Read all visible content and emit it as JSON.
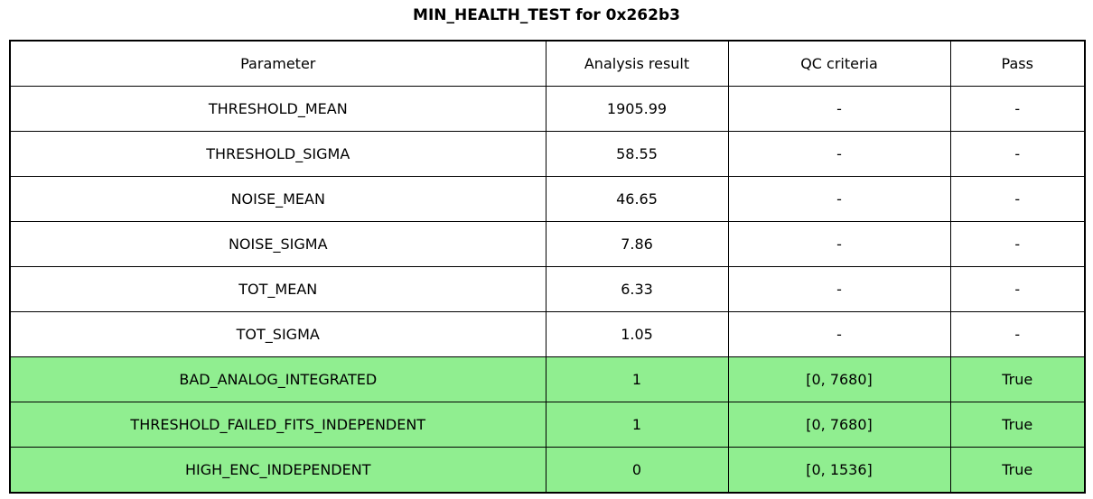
{
  "title": "MIN_HEALTH_TEST for 0x262b3",
  "chart_data": {
    "type": "table",
    "title": "MIN_HEALTH_TEST for 0x262b3",
    "columns": [
      "Parameter",
      "Analysis result",
      "QC criteria",
      "Pass"
    ],
    "rows": [
      {
        "parameter": "THRESHOLD_MEAN",
        "analysis_result": "1905.99",
        "qc_criteria": "-",
        "pass": "-",
        "highlight": false
      },
      {
        "parameter": "THRESHOLD_SIGMA",
        "analysis_result": "58.55",
        "qc_criteria": "-",
        "pass": "-",
        "highlight": false
      },
      {
        "parameter": "NOISE_MEAN",
        "analysis_result": "46.65",
        "qc_criteria": "-",
        "pass": "-",
        "highlight": false
      },
      {
        "parameter": "NOISE_SIGMA",
        "analysis_result": "7.86",
        "qc_criteria": "-",
        "pass": "-",
        "highlight": false
      },
      {
        "parameter": "TOT_MEAN",
        "analysis_result": "6.33",
        "qc_criteria": "-",
        "pass": "-",
        "highlight": false
      },
      {
        "parameter": "TOT_SIGMA",
        "analysis_result": "1.05",
        "qc_criteria": "-",
        "pass": "-",
        "highlight": false
      },
      {
        "parameter": "BAD_ANALOG_INTEGRATED",
        "analysis_result": "1",
        "qc_criteria": "[0, 7680]",
        "pass": "True",
        "highlight": true
      },
      {
        "parameter": "THRESHOLD_FAILED_FITS_INDEPENDENT",
        "analysis_result": "1",
        "qc_criteria": "[0, 7680]",
        "pass": "True",
        "highlight": true
      },
      {
        "parameter": "HIGH_ENC_INDEPENDENT",
        "analysis_result": "0",
        "qc_criteria": "[0, 1536]",
        "pass": "True",
        "highlight": true
      }
    ]
  },
  "colors": {
    "highlight_green": "#90EE90",
    "border": "#000000",
    "background": "#ffffff",
    "text": "#000000"
  }
}
